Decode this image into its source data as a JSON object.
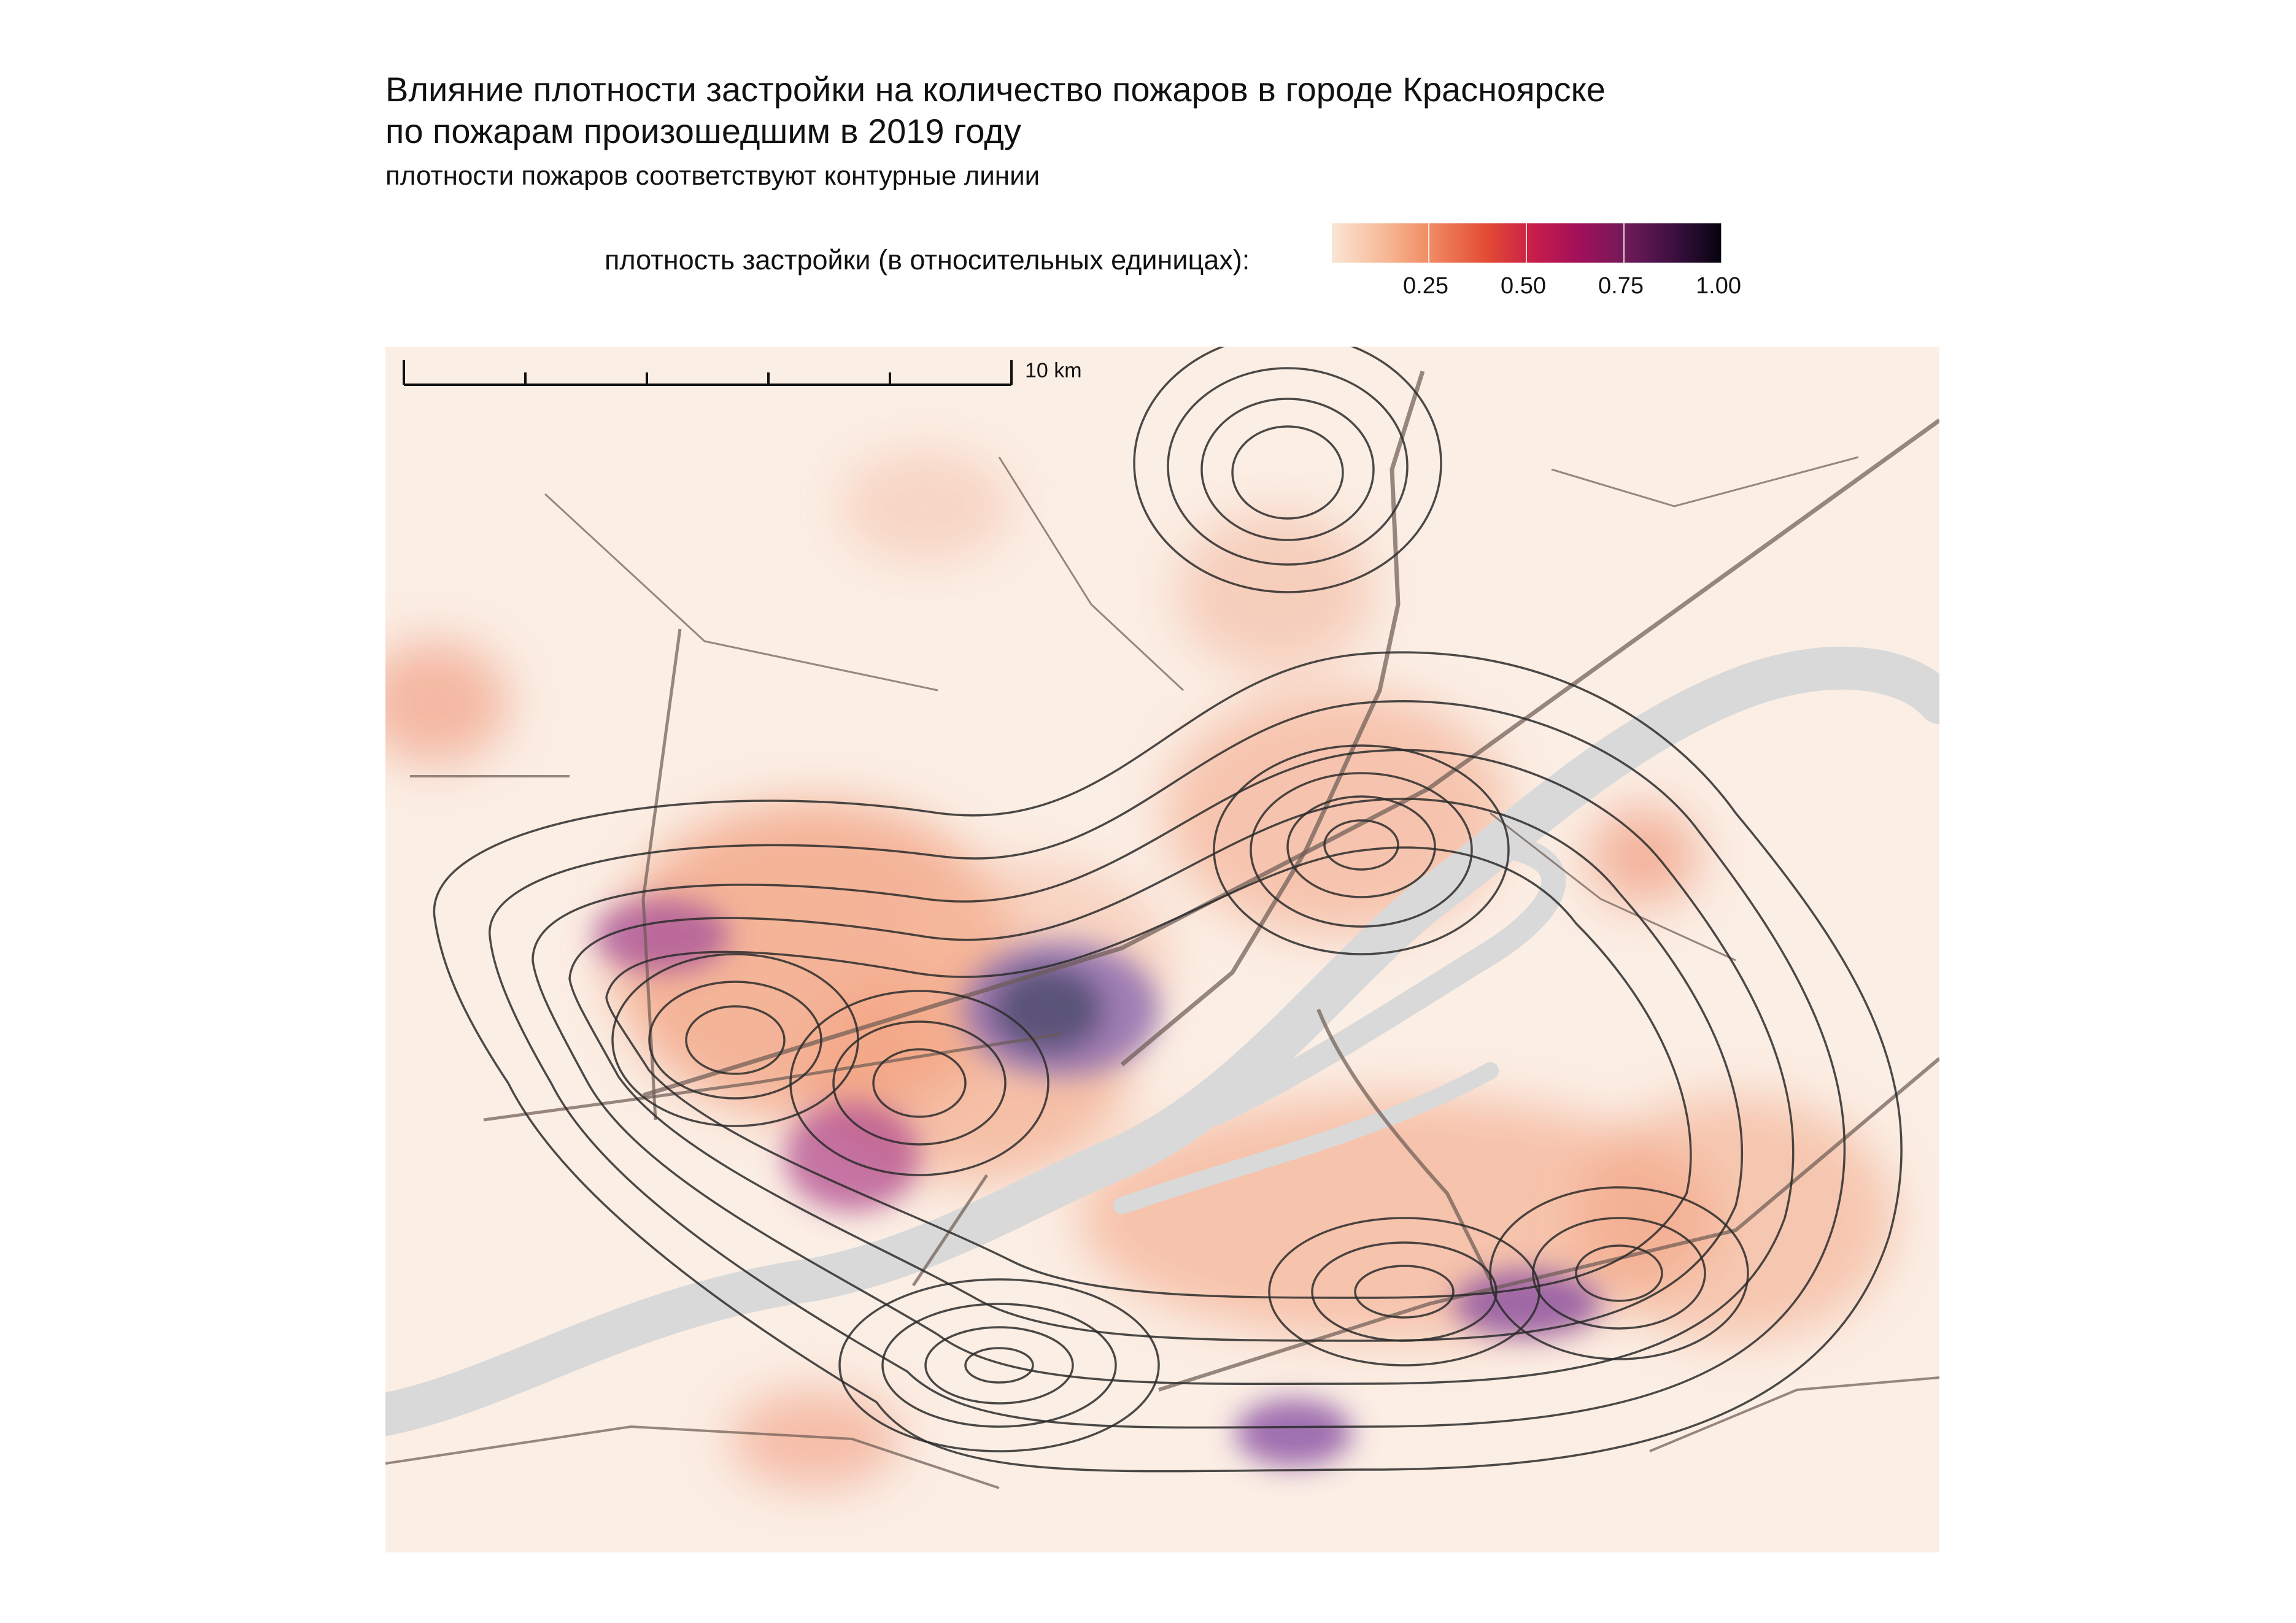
{
  "title": {
    "line1": "Влияние плотности застройки на количество пожаров в городе Красноярске",
    "line2": "по пожарам произошедшим в 2019 году"
  },
  "subtitle": "плотности пожаров соответствуют контурные линии",
  "legend": {
    "label": "плотность застройки (в относительных единицах):",
    "ticks": [
      "0.25",
      "0.50",
      "0.75",
      "1.00"
    ],
    "tick_values": [
      0.25,
      0.5,
      0.75,
      1.0
    ],
    "colors": [
      "#fbe5d6",
      "#f08b63",
      "#c71c4a",
      "#6e1a58",
      "#04040f"
    ]
  },
  "scale_bar": {
    "label": "10 km"
  },
  "colors": {
    "background": "#fbeee4",
    "river": "#d9d9d9",
    "roads": "#6b5a52",
    "contours": "#2b2b2b"
  }
}
